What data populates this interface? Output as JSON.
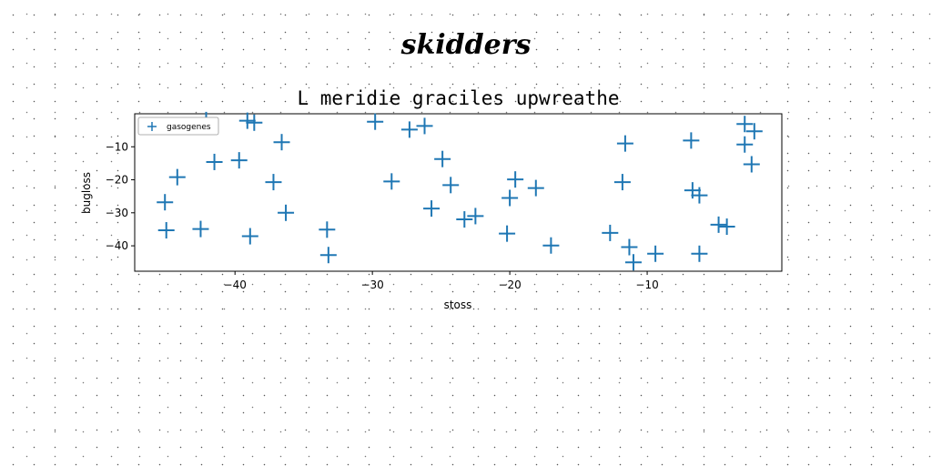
{
  "brand_text": "skidders",
  "chart_data": {
    "type": "scatter",
    "title": "L meridie graciles upwreathe",
    "xlabel": "stoss",
    "ylabel": "bugloss",
    "xlim": [
      -47.3,
      -0.2
    ],
    "ylim": [
      -47.7,
      0
    ],
    "xticks": [
      -40,
      -30,
      -20,
      -10
    ],
    "xtick_labels": [
      "−40",
      "−30",
      "−20",
      "−10"
    ],
    "yticks": [
      -10,
      -20,
      -30,
      -40
    ],
    "ytick_labels": [
      "−10",
      "−20",
      "−30",
      "−40"
    ],
    "grid": false,
    "legend_position": "top-left",
    "marker": "plus",
    "color": "#1f77b4",
    "series": [
      {
        "name": "gasogenes",
        "points": [
          [
            -42.1,
            -1.9
          ],
          [
            -39.1,
            -2.1
          ],
          [
            -38.6,
            -2.7
          ],
          [
            -29.8,
            -2.4
          ],
          [
            -27.3,
            -4.8
          ],
          [
            -26.2,
            -3.7
          ],
          [
            -45.1,
            -26.8
          ],
          [
            -45.0,
            -35.3
          ],
          [
            -44.2,
            -19.2
          ],
          [
            -42.5,
            -34.9
          ],
          [
            -41.5,
            -14.6
          ],
          [
            -39.7,
            -14.1
          ],
          [
            -38.9,
            -37.1
          ],
          [
            -37.2,
            -20.7
          ],
          [
            -36.6,
            -8.6
          ],
          [
            -36.3,
            -30.0
          ],
          [
            -33.3,
            -35.1
          ],
          [
            -33.2,
            -42.8
          ],
          [
            -28.6,
            -20.5
          ],
          [
            -25.7,
            -28.7
          ],
          [
            -24.9,
            -13.7
          ],
          [
            -24.3,
            -21.6
          ],
          [
            -23.3,
            -32.0
          ],
          [
            -22.5,
            -31.0
          ],
          [
            -20.2,
            -36.3
          ],
          [
            -20.0,
            -25.5
          ],
          [
            -19.6,
            -19.9
          ],
          [
            -18.1,
            -22.5
          ],
          [
            -17.0,
            -39.9
          ],
          [
            -12.7,
            -36.1
          ],
          [
            -11.8,
            -20.7
          ],
          [
            -11.6,
            -9.0
          ],
          [
            -11.3,
            -40.4
          ],
          [
            -11.0,
            -45.0
          ],
          [
            -9.4,
            -42.4
          ],
          [
            -6.8,
            -8.1
          ],
          [
            -6.7,
            -23.2
          ],
          [
            -6.2,
            -24.7
          ],
          [
            -6.2,
            -42.4
          ],
          [
            -4.8,
            -33.6
          ],
          [
            -4.2,
            -34.2
          ],
          [
            -2.9,
            -3.1
          ],
          [
            -2.9,
            -9.3
          ],
          [
            -2.2,
            -5.3
          ],
          [
            -2.4,
            -15.3
          ]
        ]
      }
    ]
  }
}
